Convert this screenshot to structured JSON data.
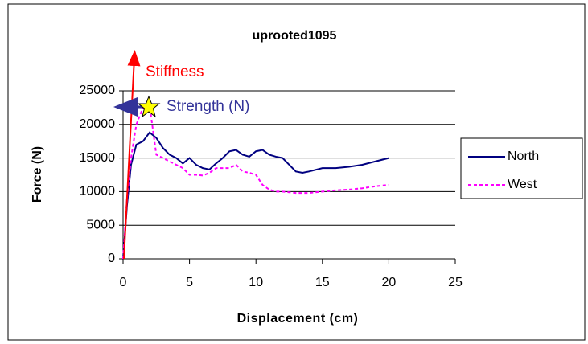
{
  "chart_data": {
    "type": "line",
    "title": "uprooted1095",
    "xlabel": "Displacement (cm)",
    "ylabel": "Force (N)",
    "annotations": [
      "Stiffness",
      "Strength (N)"
    ],
    "x": [
      0,
      0.3,
      0.6,
      1,
      1.5,
      2,
      2.5,
      3,
      3.5,
      4,
      4.5,
      5,
      5.5,
      6,
      6.5,
      7,
      7.5,
      8,
      8.5,
      9,
      9.5,
      10,
      10.5,
      11,
      11.5,
      12,
      12.5,
      13,
      13.5,
      14,
      15,
      16,
      17,
      18,
      19,
      20
    ],
    "series": [
      {
        "name": "North",
        "color": "#000080",
        "dashed": false,
        "values": [
          0,
          8000,
          14000,
          17000,
          17500,
          18800,
          18000,
          16500,
          15500,
          15000,
          14200,
          15000,
          14000,
          13500,
          13300,
          14200,
          15000,
          16000,
          16200,
          15500,
          15200,
          16000,
          16200,
          15500,
          15200,
          15000,
          14000,
          13000,
          12800,
          13000,
          13500,
          13500,
          13700,
          14000,
          14500,
          15000
        ]
      },
      {
        "name": "West",
        "color": "#ff00ff",
        "dashed": true,
        "values": [
          0,
          9000,
          15000,
          20000,
          22500,
          22800,
          15500,
          15000,
          14500,
          14000,
          13500,
          12500,
          12500,
          12400,
          12800,
          13500,
          13500,
          13500,
          14000,
          13000,
          12800,
          12500,
          11000,
          10300,
          10000,
          10000,
          9900,
          9800,
          9800,
          9800,
          10000,
          10200,
          10300,
          10500,
          10800,
          11000
        ]
      }
    ],
    "xlim": [
      0,
      25
    ],
    "xticks": [
      0,
      5,
      10,
      15,
      20,
      25
    ],
    "ylim": [
      0,
      25000
    ],
    "yticks": [
      0,
      5000,
      10000,
      15000,
      20000,
      25000
    ],
    "grid": true,
    "legend": "right"
  }
}
